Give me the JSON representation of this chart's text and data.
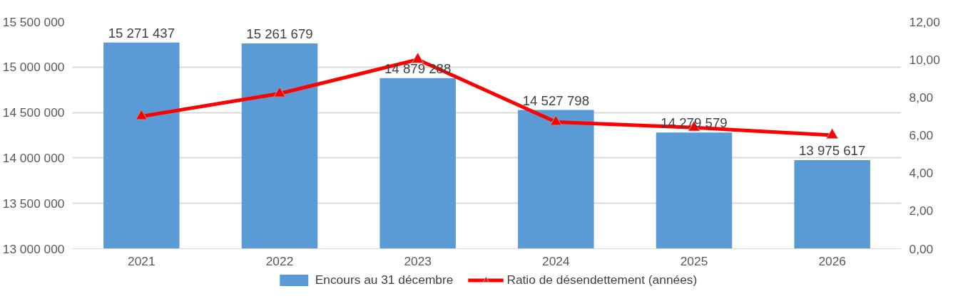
{
  "chart_data": {
    "type": "bar",
    "categories": [
      "2021",
      "2022",
      "2023",
      "2024",
      "2025",
      "2026"
    ],
    "series": [
      {
        "name": "Encours au 31 décembre",
        "color": "#5b9bd5",
        "values": [
          15271437,
          15261679,
          14879288,
          14527798,
          14279579,
          13975617
        ],
        "value_labels": [
          "15 271 437",
          "15 261 679",
          "14 879 288",
          "14 527 798",
          "14 279 579",
          "13 975 617"
        ]
      },
      {
        "name": "Ratio de désendettement (années)",
        "type": "line",
        "axis": "y2",
        "color": "#ff0000",
        "marker": "triangle",
        "values": [
          7.0,
          8.2,
          10.0,
          6.7,
          6.4,
          6.0
        ]
      }
    ],
    "ylim": [
      13000000,
      15500000
    ],
    "yticks": [
      {
        "value": 13000000,
        "label": "13 000 000"
      },
      {
        "value": 13500000,
        "label": "13 500 000"
      },
      {
        "value": 14000000,
        "label": "14 000 000"
      },
      {
        "value": 14500000,
        "label": "14 500 000"
      },
      {
        "value": 15000000,
        "label": "15 000 000"
      },
      {
        "value": 15500000,
        "label": "15 500 000"
      }
    ],
    "y2lim": [
      0,
      12
    ],
    "y2ticks": [
      {
        "value": 0,
        "label": "0,00"
      },
      {
        "value": 2,
        "label": "2,00"
      },
      {
        "value": 4,
        "label": "4,00"
      },
      {
        "value": 6,
        "label": "6,00"
      },
      {
        "value": 8,
        "label": "8,00"
      },
      {
        "value": 10,
        "label": "10,00"
      },
      {
        "value": 12,
        "label": "12,00"
      }
    ],
    "grid": "y",
    "legend": "bottom"
  }
}
